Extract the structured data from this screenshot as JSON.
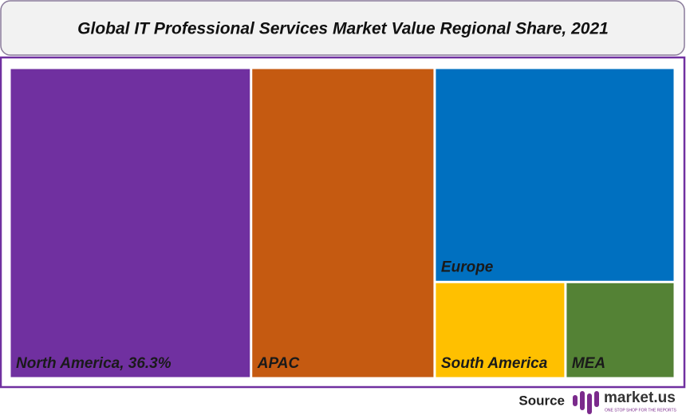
{
  "chart_data": {
    "type": "treemap",
    "title": "Global IT Professional  Services Market Value Regional Share, 2021",
    "categories": [
      "North America, 36.3%",
      "APAC",
      "Europe",
      "South America",
      "MEA"
    ],
    "values": [
      36.3,
      27.6,
      24.9,
      6.1,
      5.1
    ],
    "colors": [
      "#7030a0",
      "#c55a11",
      "#0070c0",
      "#ffc000",
      "#548235"
    ]
  },
  "source": {
    "label": "Source",
    "brand": "market.us",
    "tagline": "ONE STOP SHOP FOR THE REPORTS"
  }
}
